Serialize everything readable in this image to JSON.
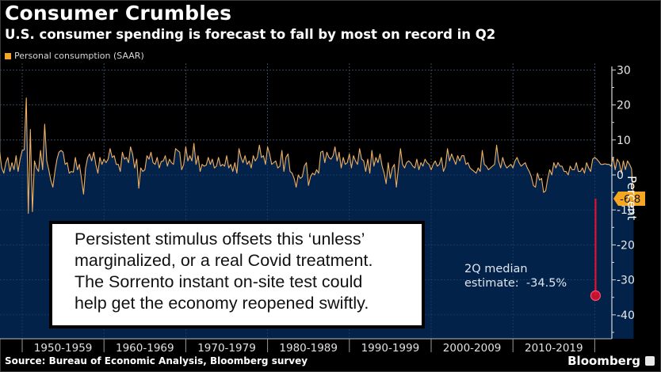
{
  "header": {
    "title": "Consumer Crumbles",
    "subtitle": "U.S. consumer spending is forecast to fall by most on record in Q2"
  },
  "legend": {
    "label": "Personal consumption (SAAR)",
    "color": "#f5a623"
  },
  "annotation": {
    "lines": [
      "Persistent stimulus offsets this ‘unless’",
      "marginalized, or a real Covid treatment.",
      "The Sorrento instant on-site test could",
      "help get the economy reopened swiftly."
    ]
  },
  "median_note": {
    "line1": "2Q median",
    "line2": "estimate:  -34.5%"
  },
  "footer": {
    "source": "Source: Bureau of Economic Analysis, Bloomberg survey",
    "brand": "Bloomberg"
  },
  "colors": {
    "line": "#f0b060",
    "area": "#03224a",
    "forecast": "#e0102e",
    "last_label_bg": "#f5a623",
    "axis": "#d8d8d8"
  },
  "chart_data": {
    "type": "area",
    "title": "Consumer Crumbles",
    "subtitle": "U.S. consumer spending is forecast to fall by most on record in Q2",
    "xlabel": "",
    "ylabel": "Percent",
    "ylim": [
      -45,
      32
    ],
    "yticks": [
      30,
      20,
      10,
      0,
      -10,
      -20,
      -30,
      -40
    ],
    "ytick_labels": [
      "30",
      "20",
      "10",
      "0",
      "-10",
      "-20",
      "-30",
      "-40"
    ],
    "x_start": 1947.25,
    "x_step": 0.25,
    "xlim": [
      1947.25,
      2020.6
    ],
    "x_category_labels": [
      "1950-1959",
      "1960-1969",
      "1970-1979",
      "1980-1989",
      "1990-1999",
      "2000-2009",
      "2010-2019"
    ],
    "x_category_bounds": [
      1950,
      1960,
      1970,
      1980,
      1990,
      2000,
      2010,
      2020
    ],
    "grid": true,
    "legend_position": "top-left",
    "series": [
      {
        "name": "Personal consumption (SAAR)",
        "values": [
          6.5,
          2.0,
          0.5,
          3.5,
          5.0,
          1.0,
          3.5,
          1.5,
          5.5,
          1.0,
          4.5,
          7.0,
          7.2,
          22.0,
          -11.0,
          13.0,
          -10.5,
          4.0,
          2.0,
          1.0,
          7.0,
          1.5,
          14.5,
          4.0,
          1.5,
          -1.5,
          -3.5,
          1.0,
          4.5,
          6.5,
          7.0,
          6.5,
          3.0,
          3.5,
          0.5,
          1.0,
          0.8,
          5.0,
          1.5,
          3.0,
          -1.0,
          -5.5,
          2.0,
          5.0,
          6.0,
          4.0,
          6.5,
          3.0,
          0.5,
          5.0,
          3.0,
          4.5,
          3.5,
          4.5,
          7.5,
          5.0,
          5.5,
          3.0,
          3.0,
          1.0,
          6.5,
          4.5,
          5.0,
          3.5,
          8.0,
          6.0,
          2.0,
          4.5,
          -3.8,
          2.0,
          1.0,
          1.5,
          5.5,
          4.5,
          6.5,
          3.5,
          3.0,
          5.0,
          2.0,
          3.8,
          4.0,
          5.5,
          2.5,
          4.5,
          3.5,
          3.0,
          7.5,
          7.0,
          6.5,
          1.5,
          3.0,
          8.0,
          4.0,
          5.5,
          4.0,
          9.0,
          3.0,
          5.5,
          1.0,
          3.0,
          2.5,
          2.8,
          5.0,
          3.0,
          4.5,
          2.0,
          2.5,
          5.0,
          2.5,
          3.0,
          2.5,
          5.5,
          2.0,
          3.0,
          1.0,
          3.5,
          0.5,
          7.5,
          5.0,
          3.5,
          5.5,
          3.0,
          4.0,
          2.0,
          5.5,
          4.0,
          5.0,
          8.5,
          5.0,
          5.5,
          3.0,
          8.0,
          6.0,
          3.0,
          3.5,
          4.0,
          2.0,
          2.5,
          7.0,
          1.0,
          5.0,
          6.0,
          1.0,
          0.5,
          -1.0,
          -3.5,
          0.0,
          -1.0,
          -0.5,
          2.5,
          3.5,
          -3.0,
          -0.5,
          0.5,
          0.0,
          1.5,
          0.5,
          6.5,
          6.8,
          3.5,
          6.5,
          5.0,
          4.5,
          5.5,
          8.0,
          4.0,
          6.5,
          2.0,
          5.0,
          3.0,
          3.5,
          6.0,
          2.0,
          5.5,
          4.0,
          3.0,
          7.5,
          4.5,
          4.0,
          1.0,
          4.5,
          0.5,
          7.0,
          2.5,
          5.0,
          3.5,
          6.0,
          2.5,
          0.5,
          -2.5,
          3.5,
          -1.0,
          2.0,
          3.0,
          -3.5,
          2.0,
          7.5,
          3.0,
          2.0,
          3.5,
          4.0,
          3.5,
          2.5,
          2.0,
          4.5,
          1.5,
          3.5,
          2.5,
          4.5,
          3.5,
          3.0,
          1.5,
          3.0,
          4.0,
          2.5,
          3.0,
          5.0,
          1.0,
          2.5,
          7.5,
          4.0,
          6.0,
          4.5,
          3.0,
          5.5,
          4.0,
          5.5,
          5.5,
          3.0,
          3.5,
          2.0,
          1.5,
          1.0,
          0.5,
          2.0,
          1.0,
          7.0,
          3.0,
          2.5,
          1.5,
          2.0,
          2.5,
          3.0,
          8.5,
          4.0,
          2.0,
          5.0,
          3.0,
          2.0,
          2.5,
          3.0,
          2.0,
          4.0,
          5.0,
          3.5,
          2.5,
          3.0,
          3.5,
          2.0,
          1.0,
          -0.5,
          -3.0,
          -3.5,
          0.5,
          -1.5,
          -1.0,
          -5.0,
          -4.5,
          -1.0,
          1.5,
          0.0,
          3.5,
          2.0,
          3.5,
          2.5,
          2.5,
          1.0,
          1.0,
          0.0,
          2.5,
          1.5,
          1.5,
          3.5,
          1.0,
          1.0,
          2.0,
          0.5,
          3.5,
          2.0,
          1.0,
          4.5,
          5.0,
          4.5,
          3.8,
          3.0,
          3.0,
          3.2,
          3.0,
          3.0,
          2.5,
          5.0,
          1.5,
          4.5,
          3.5,
          0.5,
          4.0,
          1.5,
          4.0,
          3.0,
          1.8,
          -6.8
        ]
      },
      {
        "name": "2Q median estimate",
        "x": [
          2020.0,
          2020.25
        ],
        "values": [
          -6.8,
          -34.5
        ]
      }
    ],
    "annotations": [
      {
        "type": "last-value-label",
        "x": 2020.0,
        "y": -6.8,
        "text": "-6.8"
      },
      {
        "type": "marker",
        "x": 2020.25,
        "y": -34.5,
        "text": "2Q median estimate: -34.5%"
      }
    ]
  }
}
